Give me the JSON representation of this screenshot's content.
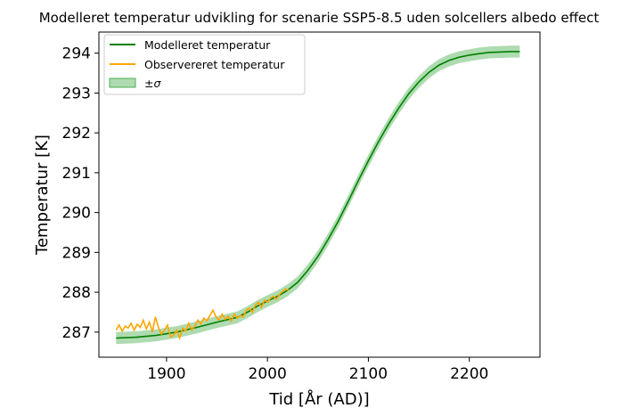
{
  "chart_data": {
    "type": "line",
    "title": "Modelleret temperatur udvikling for scenarie SSP5-8.5 uden solcellers albedo effect",
    "xlabel": "Tid [År (AD)]",
    "ylabel": "Temperatur [K]",
    "xlim": [
      1833,
      2270
    ],
    "ylim": [
      286.37,
      294.53
    ],
    "xticks": [
      1900,
      2000,
      2100,
      2200
    ],
    "yticks": [
      287,
      288,
      289,
      290,
      291,
      292,
      293,
      294
    ],
    "grid": false,
    "legend_position": "top-left",
    "series": [
      {
        "name": "Modelleret temperatur",
        "color": "#008000",
        "sigma": 0.15,
        "x": [
          1850,
          1870,
          1890,
          1910,
          1930,
          1950,
          1970,
          1980,
          1990,
          2000,
          2010,
          2020,
          2030,
          2040,
          2050,
          2060,
          2070,
          2080,
          2090,
          2100,
          2110,
          2120,
          2130,
          2140,
          2150,
          2160,
          2170,
          2180,
          2190,
          2200,
          2210,
          2220,
          2230,
          2240,
          2250
        ],
        "y": [
          286.85,
          286.87,
          286.92,
          287.0,
          287.12,
          287.25,
          287.37,
          287.5,
          287.65,
          287.78,
          287.9,
          288.05,
          288.25,
          288.55,
          288.9,
          289.32,
          289.78,
          290.28,
          290.8,
          291.3,
          291.78,
          292.22,
          292.62,
          292.98,
          293.28,
          293.52,
          293.7,
          293.82,
          293.9,
          293.95,
          293.99,
          294.02,
          294.03,
          294.04,
          294.04
        ]
      },
      {
        "name": "Observereret temperatur",
        "color": "#FFA500",
        "x": [
          1850,
          1853,
          1856,
          1859,
          1862,
          1865,
          1868,
          1871,
          1874,
          1877,
          1880,
          1883,
          1886,
          1889,
          1892,
          1895,
          1898,
          1901,
          1904,
          1907,
          1910,
          1913,
          1916,
          1919,
          1922,
          1925,
          1928,
          1931,
          1934,
          1937,
          1940,
          1943,
          1946,
          1949,
          1952,
          1955,
          1958,
          1961,
          1964,
          1967,
          1970,
          1973,
          1976,
          1979,
          1982,
          1985,
          1988,
          1991,
          1994,
          1997,
          2000,
          2003,
          2006,
          2009,
          2012,
          2015,
          2018,
          2021
        ],
        "y": [
          287.05,
          287.18,
          287.02,
          287.15,
          287.1,
          287.22,
          287.05,
          287.2,
          287.12,
          287.3,
          287.08,
          287.25,
          287.0,
          287.38,
          287.12,
          286.95,
          287.05,
          287.18,
          286.88,
          286.92,
          287.05,
          286.85,
          287.1,
          287.02,
          287.22,
          287.05,
          287.15,
          287.3,
          287.2,
          287.35,
          287.28,
          287.42,
          287.55,
          287.38,
          287.3,
          287.45,
          287.32,
          287.4,
          287.28,
          287.45,
          287.35,
          287.42,
          287.38,
          287.55,
          287.6,
          287.5,
          287.68,
          287.75,
          287.62,
          287.8,
          287.75,
          287.85,
          287.9,
          287.82,
          287.95,
          288.02,
          288.08,
          288.05
        ]
      }
    ],
    "band": {
      "name": "±σ",
      "color": "#4CAF50",
      "opacity": 0.45
    }
  }
}
